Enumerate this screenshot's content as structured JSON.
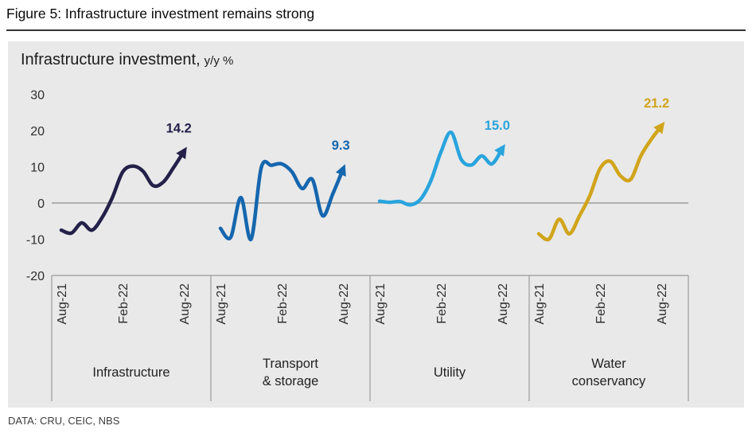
{
  "figure": {
    "title": "Figure 5: Infrastructure investment remains strong",
    "source": "DATA: CRU, CEIC, NBS"
  },
  "chart": {
    "title": "Infrastructure investment,",
    "units": "y/y %"
  },
  "chart_data": {
    "type": "line",
    "title": "Infrastructure investment, y/y %",
    "ylabel": "y/y %",
    "ylim": [
      -20,
      30
    ],
    "yticks": [
      30,
      20,
      10,
      0,
      -10,
      -20
    ],
    "x_tick_labels": [
      "Aug-21",
      "Feb-22",
      "Aug-22"
    ],
    "x_months": [
      "Aug-21",
      "Sep-21",
      "Oct-21",
      "Nov-21",
      "Dec-21",
      "Jan-22",
      "Feb-22",
      "Mar-22",
      "Apr-22",
      "May-22",
      "Jun-22",
      "Jul-22",
      "Aug-22"
    ],
    "grid": false,
    "zero_line": true,
    "background": "#e9e9e9",
    "axis_color": "#9b9b9b",
    "zero_line_color": "#8f8f8f",
    "panels": [
      {
        "name": "Infrastructure",
        "label_lines": [
          "Infrastructure"
        ],
        "color": "#232049",
        "end_label": "14.2",
        "values": [
          -7.5,
          -8.3,
          -5.5,
          -7.5,
          -4,
          1.5,
          8.5,
          10.2,
          8.8,
          4.8,
          5.8,
          9.8,
          14.2
        ]
      },
      {
        "name": "Transport & storage",
        "label_lines": [
          "Transport",
          "& storage"
        ],
        "color": "#1566ae",
        "end_label": "9.3",
        "values": [
          -7,
          -9.5,
          1.5,
          -10,
          9.8,
          10.4,
          10.8,
          8.6,
          4,
          6.5,
          -3.5,
          2.5,
          9.3
        ]
      },
      {
        "name": "Utility",
        "label_lines": [
          "Utility"
        ],
        "color": "#29a4dd",
        "end_label": "15.0",
        "values": [
          0.5,
          0.2,
          0.4,
          -0.5,
          1,
          6,
          14,
          19.5,
          12,
          10.5,
          13,
          10.8,
          15.0
        ]
      },
      {
        "name": "Water conservancy",
        "label_lines": [
          "Water",
          "conservancy"
        ],
        "color": "#d1a51b",
        "end_label": "21.2",
        "values": [
          -8.5,
          -10,
          -4.5,
          -8.5,
          -3.5,
          2,
          9.5,
          11.5,
          7.5,
          6.5,
          13,
          17.5,
          21.2
        ]
      }
    ]
  }
}
